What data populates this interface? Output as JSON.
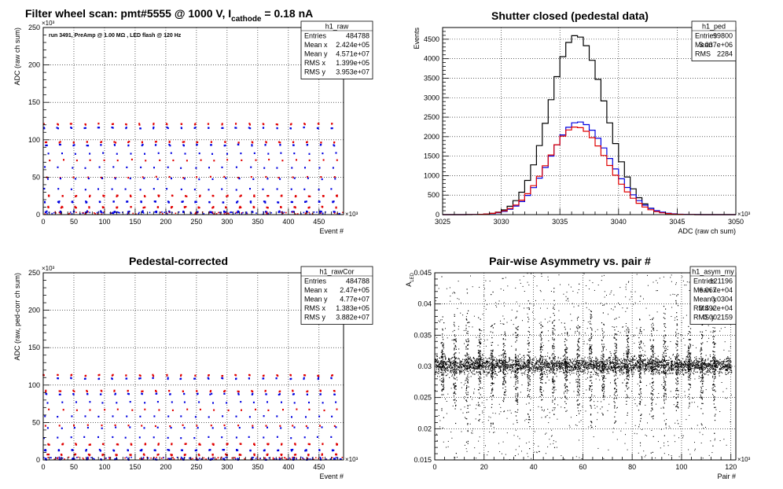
{
  "chart_data": [
    {
      "type": "scatter",
      "title_parts": [
        "Filter wheel scan: pmt#5555 @  1000 V, I",
        "cathode",
        " = 0.18 nA"
      ],
      "annotation": "run 3491, PreAmp @ 1.00 MΩ , LED flash @  120 Hz",
      "xlabel": "Event #",
      "ylabel": "ADC (raw ch sum)",
      "x_multiplier": "×10³",
      "y_multiplier": "×10³",
      "xlim": [
        0,
        490
      ],
      "ylim": [
        0,
        250
      ],
      "xticks": [
        0,
        50,
        100,
        150,
        200,
        250,
        300,
        350,
        400,
        450
      ],
      "yticks": [
        0,
        50,
        100,
        150,
        200,
        250
      ],
      "stats": {
        "name": "h1_raw",
        "rows": [
          [
            "Entries",
            "484788"
          ],
          [
            "Mean x",
            "2.424e+05"
          ],
          [
            "Mean y",
            "4.571e+07"
          ],
          [
            "RMS x",
            "1.399e+05"
          ],
          [
            "RMS y",
            "3.953e+07"
          ]
        ]
      },
      "bands": [
        {
          "y": 121,
          "color": "#e00000",
          "offset": -4
        },
        {
          "y": 116,
          "color": "#0000e0",
          "offset": -4
        },
        {
          "y": 97,
          "color": "#e00000",
          "offset": 0
        },
        {
          "y": 93,
          "color": "#0000e0",
          "offset": 0
        },
        {
          "y": 82,
          "color": "#0000e0",
          "offset": 3
        },
        {
          "y": 73,
          "color": "#e00000",
          "offset": 5
        },
        {
          "y": 63,
          "color": "#0000e0",
          "offset": -3
        },
        {
          "y": 50,
          "color": "#e00000",
          "offset": 0
        },
        {
          "y": 48,
          "color": "#0000e0",
          "offset": 2
        },
        {
          "y": 34,
          "color": "#0000e0",
          "offset": -4
        },
        {
          "y": 25,
          "color": "#e00000",
          "offset": 4
        },
        {
          "y": 17,
          "color": "#0000e0",
          "offset": -2
        },
        {
          "y": 10,
          "color": "#e00000",
          "offset": 3
        },
        {
          "y": 4,
          "color": "#0000e0",
          "offset": 0
        }
      ]
    },
    {
      "type": "line",
      "title": "Shutter closed (pedestal data)",
      "xlabel": "ADC (raw ch sum)",
      "ylabel": "Events",
      "x_multiplier": "×10³",
      "xlim": [
        3025,
        3050
      ],
      "ylim": [
        0,
        4800
      ],
      "xticks": [
        3025,
        3030,
        3035,
        3040,
        3045,
        3050
      ],
      "yticks": [
        0,
        500,
        1000,
        1500,
        2000,
        2500,
        3000,
        3500,
        4000,
        4500
      ],
      "stats": {
        "name": "h1_ped",
        "rows": [
          [
            "Entries",
            "99800"
          ],
          [
            "Mean",
            "3.037e+06"
          ],
          [
            "RMS",
            "2284"
          ]
        ]
      },
      "series": [
        {
          "color": "#000000",
          "mean": 3036.4,
          "sigma": 2.28,
          "peak": 4600
        },
        {
          "color": "#0000e0",
          "mean": 3036.6,
          "sigma": 2.45,
          "peak": 2380
        },
        {
          "color": "#e00000",
          "mean": 3036.4,
          "sigma": 2.45,
          "peak": 2250
        }
      ]
    },
    {
      "type": "scatter",
      "title": "Pedestal-corrected",
      "xlabel": "Event #",
      "ylabel": "ADC (raw, ped-corr ch sum)",
      "x_multiplier": "×10³",
      "y_multiplier": "×10³",
      "xlim": [
        0,
        490
      ],
      "ylim": [
        0,
        250
      ],
      "xticks": [
        0,
        50,
        100,
        150,
        200,
        250,
        300,
        350,
        400,
        450
      ],
      "yticks": [
        0,
        50,
        100,
        150,
        200,
        250
      ],
      "stats": {
        "name": "h1_rawCor",
        "rows": [
          [
            "Entries",
            "484788"
          ],
          [
            "Mean x",
            "2.47e+05"
          ],
          [
            "Mean y",
            "4.77e+07"
          ],
          [
            "RMS x",
            "1.383e+05"
          ],
          [
            "RMS y",
            "3.882e+07"
          ]
        ]
      },
      "bands": [
        {
          "y": 113,
          "color": "#e00000",
          "offset": -4
        },
        {
          "y": 109,
          "color": "#0000e0",
          "offset": -4
        },
        {
          "y": 92,
          "color": "#e00000",
          "offset": 0
        },
        {
          "y": 88,
          "color": "#0000e0",
          "offset": 0
        },
        {
          "y": 77,
          "color": "#0000e0",
          "offset": 3
        },
        {
          "y": 67,
          "color": "#e00000",
          "offset": 5
        },
        {
          "y": 58,
          "color": "#0000e0",
          "offset": -3
        },
        {
          "y": 46,
          "color": "#e00000",
          "offset": 0
        },
        {
          "y": 43,
          "color": "#0000e0",
          "offset": 2
        },
        {
          "y": 30,
          "color": "#0000e0",
          "offset": -4
        },
        {
          "y": 21,
          "color": "#e00000",
          "offset": 4
        },
        {
          "y": 13,
          "color": "#0000e0",
          "offset": -2
        },
        {
          "y": 7,
          "color": "#e00000",
          "offset": 3
        },
        {
          "y": 1,
          "color": "#0000e0",
          "offset": 0
        }
      ]
    },
    {
      "type": "scatter",
      "title": "Pair-wise Asymmetry vs. pair #",
      "xlabel": "Pair #",
      "ylabel": "A",
      "ylabel_sub": "LED",
      "x_multiplier": "×10³",
      "xlim": [
        0,
        122
      ],
      "ylim": [
        0.015,
        0.045
      ],
      "xticks": [
        0,
        20,
        40,
        60,
        80,
        100,
        120
      ],
      "yticks": [
        0.015,
        0.02,
        0.025,
        0.03,
        0.035,
        0.04,
        0.045
      ],
      "stats": {
        "name": "h1_asym_my",
        "rows": [
          [
            "Entries",
            "121196"
          ],
          [
            "Mean x",
            "6.067e+04"
          ],
          [
            "Mean y",
            "0.0304"
          ],
          [
            "RMS x",
            "3.492e+04"
          ],
          [
            "RMS y",
            "0.002159"
          ]
        ]
      },
      "band_center": 0.0302,
      "band_halfwidth": 0.0009,
      "spike_x": [
        3,
        8,
        13,
        18,
        23,
        28,
        33,
        38,
        43,
        48,
        53,
        58,
        63,
        68,
        73,
        78,
        83,
        88,
        93,
        98,
        103,
        108,
        113
      ]
    }
  ]
}
